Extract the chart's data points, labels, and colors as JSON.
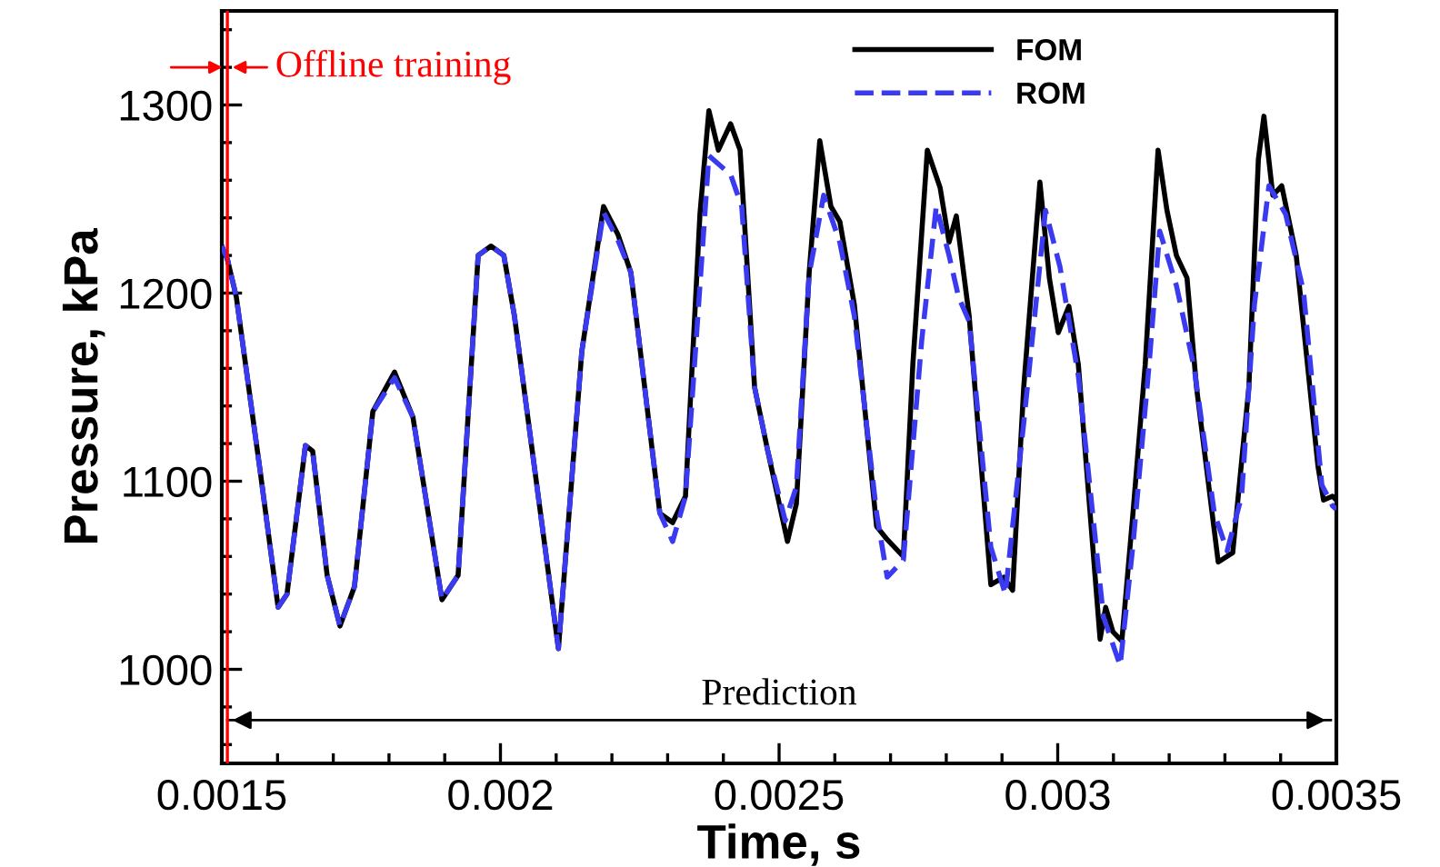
{
  "chart_data": {
    "type": "line",
    "xlabel": "Time, s",
    "ylabel": "Pressure, kPa",
    "xlim": [
      0.0015,
      0.0035
    ],
    "xticks": [
      {
        "value": 0.0015,
        "label": "0.0015"
      },
      {
        "value": 0.002,
        "label": "0.002"
      },
      {
        "value": 0.0025,
        "label": "0.0025"
      },
      {
        "value": 0.003,
        "label": "0.003"
      },
      {
        "value": 0.0035,
        "label": "0.0035"
      }
    ],
    "ylim": [
      950,
      1350
    ],
    "yticks": [
      1000,
      1100,
      1200,
      1300
    ],
    "grid": false,
    "legend": "top right",
    "marker": "none",
    "ref_lines": [
      {
        "axis": "x",
        "value": 0.00151,
        "label": "Offline training",
        "color": "#ff0000"
      },
      {
        "axis": "y",
        "value": 973,
        "label": "Prediction",
        "color": "#000000"
      }
    ],
    "series": [
      {
        "name": "FOM",
        "color": "#000000",
        "line_style": "solid",
        "x": [
          0.0015,
          0.00151,
          0.001526,
          0.001569,
          0.001601,
          0.001617,
          0.00165,
          0.001663,
          0.001689,
          0.001712,
          0.001738,
          0.001771,
          0.00181,
          0.001843,
          0.001895,
          0.001924,
          0.00196,
          0.001983,
          0.002006,
          0.002025,
          0.002104,
          0.002146,
          0.002185,
          0.002211,
          0.002234,
          0.002286,
          0.002309,
          0.002332,
          0.002358,
          0.002374,
          0.002391,
          0.002413,
          0.00243,
          0.002456,
          0.002479,
          0.002515,
          0.002531,
          0.002554,
          0.002573,
          0.002593,
          0.002609,
          0.002635,
          0.002675,
          0.002694,
          0.002723,
          0.00274,
          0.002766,
          0.002789,
          0.002805,
          0.002818,
          0.002841,
          0.00288,
          0.002903,
          0.002919,
          0.002939,
          0.002968,
          0.002985,
          0.003001,
          0.00302,
          0.003037,
          0.003076,
          0.003086,
          0.003099,
          0.003115,
          0.003135,
          0.003157,
          0.00318,
          0.003196,
          0.003213,
          0.003232,
          0.003249,
          0.003288,
          0.003314,
          0.003343,
          0.00336,
          0.00337,
          0.003386,
          0.003402,
          0.003428,
          0.003467,
          0.003477,
          0.003493,
          0.0035
        ],
        "values": [
          1225,
          1218,
          1198,
          1105,
          1033,
          1040,
          1119,
          1116,
          1050,
          1023,
          1044,
          1137,
          1158,
          1134,
          1037,
          1050,
          1220,
          1225,
          1220,
          1188,
          1011,
          1169,
          1246,
          1231,
          1211,
          1083,
          1078,
          1092,
          1242,
          1297,
          1276,
          1290,
          1276,
          1150,
          1117,
          1068,
          1088,
          1211,
          1281,
          1246,
          1238,
          1194,
          1076,
          1069,
          1060,
          1162,
          1276,
          1256,
          1227,
          1241,
          1188,
          1045,
          1049,
          1042,
          1150,
          1259,
          1208,
          1179,
          1193,
          1162,
          1016,
          1033,
          1020,
          1015,
          1083,
          1162,
          1276,
          1244,
          1220,
          1208,
          1150,
          1057,
          1062,
          1150,
          1271,
          1294,
          1252,
          1257,
          1220,
          1108,
          1090,
          1092,
          1090
        ]
      },
      {
        "name": "ROM",
        "color": "#3a3af0",
        "line_style": "dashed",
        "x": [
          0.0015,
          0.00151,
          0.001526,
          0.001569,
          0.001601,
          0.001617,
          0.00165,
          0.001663,
          0.001689,
          0.001712,
          0.001738,
          0.001771,
          0.00181,
          0.001843,
          0.001895,
          0.001924,
          0.00196,
          0.001983,
          0.002006,
          0.002025,
          0.002104,
          0.002146,
          0.002185,
          0.002211,
          0.002234,
          0.002286,
          0.002309,
          0.002332,
          0.002374,
          0.002413,
          0.002433,
          0.002456,
          0.002479,
          0.002511,
          0.002531,
          0.002554,
          0.00258,
          0.002609,
          0.002635,
          0.002675,
          0.002694,
          0.002723,
          0.002756,
          0.002782,
          0.002805,
          0.002822,
          0.002841,
          0.00288,
          0.002906,
          0.002939,
          0.002978,
          0.003004,
          0.003037,
          0.003082,
          0.003112,
          0.003135,
          0.003164,
          0.003183,
          0.003213,
          0.003245,
          0.003281,
          0.003304,
          0.00333,
          0.003353,
          0.003379,
          0.003409,
          0.003441,
          0.003474,
          0.003493,
          0.0035
        ],
        "values": [
          1225,
          1218,
          1198,
          1105,
          1033,
          1040,
          1119,
          1116,
          1050,
          1023,
          1044,
          1137,
          1155,
          1134,
          1037,
          1050,
          1220,
          1225,
          1220,
          1188,
          1011,
          1169,
          1243,
          1228,
          1211,
          1083,
          1068,
          1092,
          1273,
          1263,
          1246,
          1150,
          1117,
          1079,
          1097,
          1210,
          1252,
          1227,
          1188,
          1083,
          1049,
          1058,
          1175,
          1246,
          1220,
          1198,
          1185,
          1065,
          1040,
          1131,
          1244,
          1214,
          1156,
          1028,
          1002,
          1066,
          1162,
          1233,
          1204,
          1160,
          1083,
          1063,
          1092,
          1194,
          1257,
          1242,
          1201,
          1098,
          1087,
          1085
        ]
      }
    ]
  }
}
